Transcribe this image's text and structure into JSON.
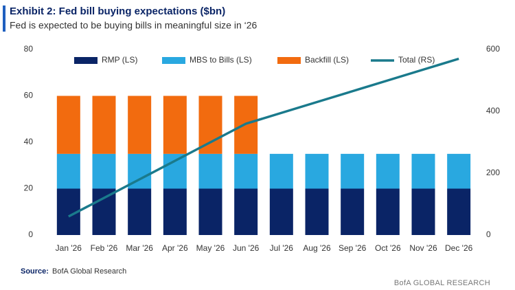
{
  "title": "Exhibit 2: Fed bill buying expectations ($bn)",
  "subtitle": "Fed is expected to be buying bills in meaningful size in ‘26",
  "source_label": "Source:",
  "source": "BofA Global Research",
  "footer": "BofA GLOBAL RESEARCH",
  "chart_data": {
    "type": "bar",
    "stacked": true,
    "categories": [
      "Jan '26",
      "Feb '26",
      "Mar '26",
      "Apr '26",
      "May '26",
      "Jun '26",
      "Jul '26",
      "Aug '26",
      "Sep '26",
      "Oct '26",
      "Nov '26",
      "Dec '26"
    ],
    "series": [
      {
        "name": "RMP (LS)",
        "color": "#0a2466",
        "values": [
          20,
          20,
          20,
          20,
          20,
          20,
          20,
          20,
          20,
          20,
          20,
          20
        ]
      },
      {
        "name": "MBS to Bills (LS)",
        "color": "#29a8e0",
        "values": [
          15,
          15,
          15,
          15,
          15,
          15,
          15,
          15,
          15,
          15,
          15,
          15
        ]
      },
      {
        "name": "Backfill (LS)",
        "color": "#f26b0f",
        "values": [
          25,
          25,
          25,
          25,
          25,
          25,
          null,
          null,
          null,
          null,
          null,
          null
        ]
      },
      {
        "name": "Total (RS)",
        "color": "#1a7a8c",
        "type": "line",
        "axis": "y2",
        "values": [
          60,
          120,
          180,
          240,
          300,
          360,
          395,
          430,
          465,
          500,
          535,
          570
        ]
      }
    ],
    "ylim": [
      0,
      80
    ],
    "yticks": [
      0,
      20,
      40,
      60,
      80
    ],
    "y2lim": [
      0,
      600
    ],
    "y2ticks": [
      0,
      200,
      400,
      600
    ],
    "grid": false,
    "legend": "top"
  }
}
